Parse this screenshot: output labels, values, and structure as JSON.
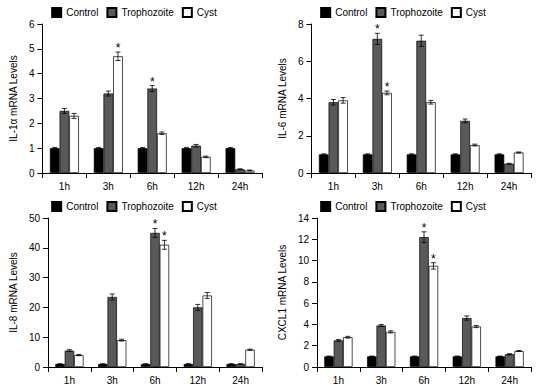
{
  "chart_data": [
    {
      "type": "bar",
      "ylabel": "IL-1α mRNA Levels",
      "categories": [
        "1h",
        "3h",
        "6h",
        "12h",
        "24h"
      ],
      "ylim": [
        0,
        6
      ],
      "yticks": [
        0,
        1,
        2,
        3,
        4,
        5,
        6
      ],
      "grid": false,
      "legend": "top",
      "series": [
        {
          "name": "Control",
          "color": "#000000",
          "values": [
            1,
            1,
            1,
            1,
            1
          ],
          "errors": [
            0.03,
            0.03,
            0.03,
            0.03,
            0.03
          ],
          "annotations": [
            null,
            null,
            null,
            null,
            null
          ]
        },
        {
          "name": "Trophozoite",
          "color": "#595959",
          "values": [
            2.5,
            3.2,
            3.4,
            1.1,
            0.15
          ],
          "errors": [
            0.1,
            0.1,
            0.12,
            0.05,
            0.02
          ],
          "annotations": [
            null,
            null,
            "*",
            null,
            null
          ]
        },
        {
          "name": "Cyst",
          "color": "#ffffff",
          "values": [
            2.3,
            4.7,
            1.6,
            0.65,
            0.1
          ],
          "errors": [
            0.1,
            0.17,
            0.05,
            0.03,
            0.02
          ],
          "annotations": [
            null,
            "*",
            null,
            null,
            null
          ]
        }
      ]
    },
    {
      "type": "bar",
      "ylabel": "IL-6 mRNA Levels",
      "categories": [
        "1h",
        "3h",
        "6h",
        "12h",
        "24h"
      ],
      "ylim": [
        0,
        8
      ],
      "yticks": [
        0,
        2,
        4,
        6,
        8
      ],
      "grid": false,
      "legend": "top",
      "series": [
        {
          "name": "Control",
          "color": "#000000",
          "values": [
            1,
            1,
            1,
            1,
            1
          ],
          "errors": [
            0.03,
            0.03,
            0.03,
            0.03,
            0.03
          ],
          "annotations": [
            null,
            null,
            null,
            null,
            null
          ]
        },
        {
          "name": "Trophozoite",
          "color": "#595959",
          "values": [
            3.8,
            7.2,
            7.1,
            2.8,
            0.5
          ],
          "errors": [
            0.15,
            0.3,
            0.3,
            0.1,
            0.02
          ],
          "annotations": [
            null,
            "*",
            null,
            null,
            null
          ]
        },
        {
          "name": "Cyst",
          "color": "#ffffff",
          "values": [
            3.9,
            4.3,
            3.8,
            1.5,
            1.1
          ],
          "errors": [
            0.15,
            0.1,
            0.1,
            0.05,
            0.03
          ],
          "annotations": [
            null,
            "*",
            null,
            null,
            null
          ]
        }
      ]
    },
    {
      "type": "bar",
      "ylabel": "IL-8 mRNA Levels",
      "categories": [
        "1h",
        "3h",
        "6h",
        "12h",
        "24h"
      ],
      "ylim": [
        0,
        50
      ],
      "yticks": [
        0,
        10,
        20,
        30,
        40,
        50
      ],
      "grid": false,
      "legend": "top",
      "series": [
        {
          "name": "Control",
          "color": "#000000",
          "values": [
            1,
            1,
            1,
            1,
            1
          ],
          "errors": [
            0.1,
            0.1,
            0.1,
            0.1,
            0.1
          ],
          "annotations": [
            null,
            null,
            null,
            null,
            null
          ]
        },
        {
          "name": "Trophozoite",
          "color": "#595959",
          "values": [
            5.5,
            23.5,
            45,
            20,
            1
          ],
          "errors": [
            0.3,
            1,
            1.5,
            1,
            0.1
          ],
          "annotations": [
            null,
            null,
            "*",
            null,
            null
          ]
        },
        {
          "name": "Cyst",
          "color": "#ffffff",
          "values": [
            4,
            9,
            41,
            24,
            5.8
          ],
          "errors": [
            0.2,
            0.3,
            1.5,
            1,
            0.2
          ],
          "annotations": [
            null,
            null,
            "*",
            null,
            null
          ]
        }
      ]
    },
    {
      "type": "bar",
      "ylabel": "CXCL1 mRNA Levels",
      "categories": [
        "1h",
        "3h",
        "6h",
        "12h",
        "24h"
      ],
      "ylim": [
        0,
        14
      ],
      "yticks": [
        0,
        2,
        4,
        6,
        8,
        10,
        12,
        14
      ],
      "grid": false,
      "legend": "top",
      "series": [
        {
          "name": "Control",
          "color": "#000000",
          "values": [
            1,
            1,
            1,
            1,
            1
          ],
          "errors": [
            0.03,
            0.03,
            0.03,
            0.03,
            0.03
          ],
          "annotations": [
            null,
            null,
            null,
            null,
            null
          ]
        },
        {
          "name": "Trophozoite",
          "color": "#595959",
          "values": [
            2.5,
            3.9,
            12.2,
            4.6,
            1.2
          ],
          "errors": [
            0.08,
            0.1,
            0.5,
            0.2,
            0.05
          ],
          "annotations": [
            null,
            null,
            "*",
            null,
            null
          ]
        },
        {
          "name": "Cyst",
          "color": "#ffffff",
          "values": [
            2.8,
            3.3,
            9.5,
            3.8,
            1.5
          ],
          "errors": [
            0.08,
            0.1,
            0.3,
            0.1,
            0.05
          ],
          "annotations": [
            null,
            null,
            "*",
            null,
            null
          ]
        }
      ]
    }
  ]
}
